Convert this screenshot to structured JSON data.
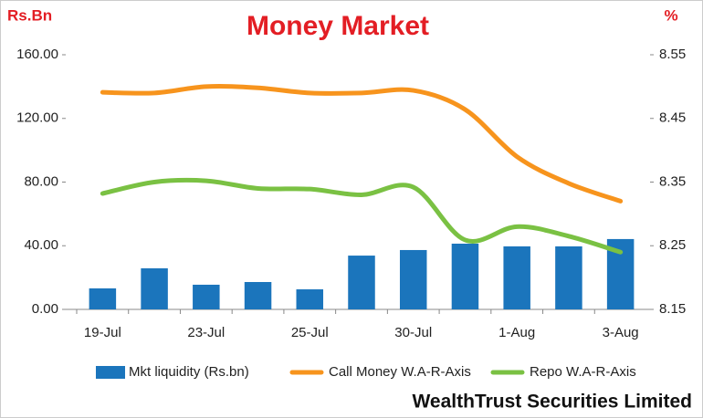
{
  "chart_data": {
    "type": "bar-line",
    "title": "Money Market",
    "y_label": "Rs.Bn",
    "y2_label": "%",
    "source": "WealthTrust Securities Limited",
    "categories": [
      "19-Jul",
      null,
      "23-Jul",
      null,
      "25-Jul",
      null,
      "30-Jul",
      null,
      "1-Aug",
      null,
      "3-Aug"
    ],
    "ylim": [
      0,
      160
    ],
    "yticks": [
      {
        "value": 0,
        "label": "0.00"
      },
      {
        "value": 40,
        "label": "40.00"
      },
      {
        "value": 80,
        "label": "80.00"
      },
      {
        "value": 120,
        "label": "120.00"
      },
      {
        "value": 160,
        "label": "160.00"
      }
    ],
    "y2lim": [
      8.15,
      8.55
    ],
    "y2ticks": [
      8.15,
      8.25,
      8.35,
      8.45,
      8.55
    ],
    "series": [
      {
        "name": "Mkt liquidity (Rs.bn)",
        "type": "bar",
        "color": "#1b75bc",
        "values": [
          13.2,
          25.8,
          15.5,
          17.2,
          12.6,
          33.8,
          37.3,
          41.3,
          39.6,
          39.6,
          44.2
        ]
      },
      {
        "name": "Call Money W.A-R-Axis",
        "type": "line",
        "axis": "y2",
        "color": "#f7941d",
        "values": [
          8.491,
          8.49,
          8.5,
          8.498,
          8.49,
          8.49,
          8.494,
          8.464,
          8.39,
          8.348,
          8.32
        ]
      },
      {
        "name": "Repo W.A-R-Axis",
        "type": "line",
        "axis": "y2",
        "color": "#7ac143",
        "values": [
          8.332,
          8.35,
          8.352,
          8.34,
          8.339,
          8.33,
          8.342,
          8.259,
          8.28,
          8.265,
          8.24
        ]
      }
    ]
  }
}
